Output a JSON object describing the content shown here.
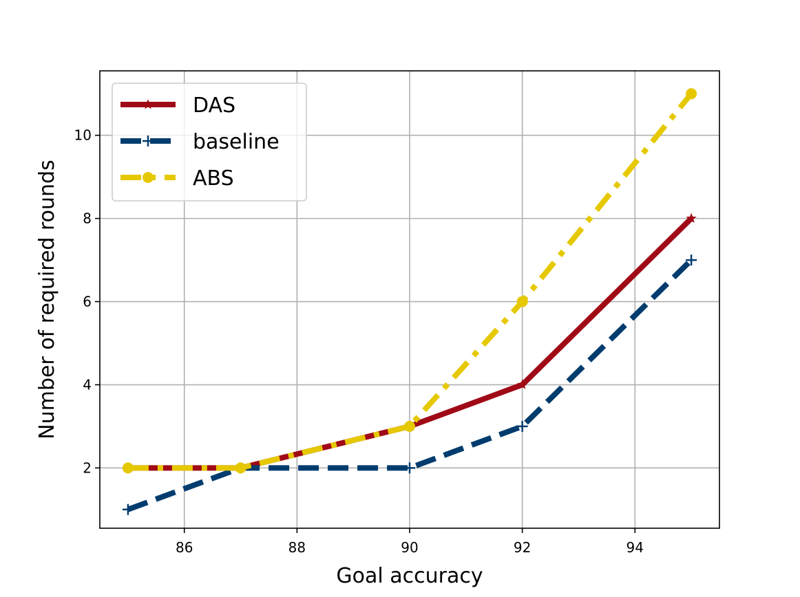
{
  "chart_data": {
    "type": "line",
    "title": "",
    "xlabel": "Goal accuracy",
    "ylabel": "Number of required rounds",
    "xlim": [
      84.5,
      95.5
    ],
    "ylim": [
      0.55,
      11.55
    ],
    "xticks": [
      86,
      88,
      90,
      92,
      94
    ],
    "yticks": [
      2,
      4,
      6,
      8,
      10
    ],
    "grid": true,
    "legend_position": "top-left",
    "series": [
      {
        "name": "DAS",
        "color": "#a00a16",
        "line_style": "solid",
        "marker": "star",
        "x": [
          85,
          87,
          90,
          92,
          95
        ],
        "y": [
          2,
          2,
          3,
          4,
          8
        ]
      },
      {
        "name": "baseline",
        "color": "#003c6e",
        "line_style": "dashed",
        "marker": "plus",
        "x": [
          85,
          87,
          90,
          92,
          95
        ],
        "y": [
          1,
          2,
          2,
          3,
          7
        ]
      },
      {
        "name": "ABS",
        "color": "#e6c800",
        "line_style": "dash-dot",
        "marker": "circle",
        "x": [
          85,
          87,
          90,
          92,
          95
        ],
        "y": [
          2,
          2,
          3,
          6,
          11
        ]
      }
    ]
  }
}
